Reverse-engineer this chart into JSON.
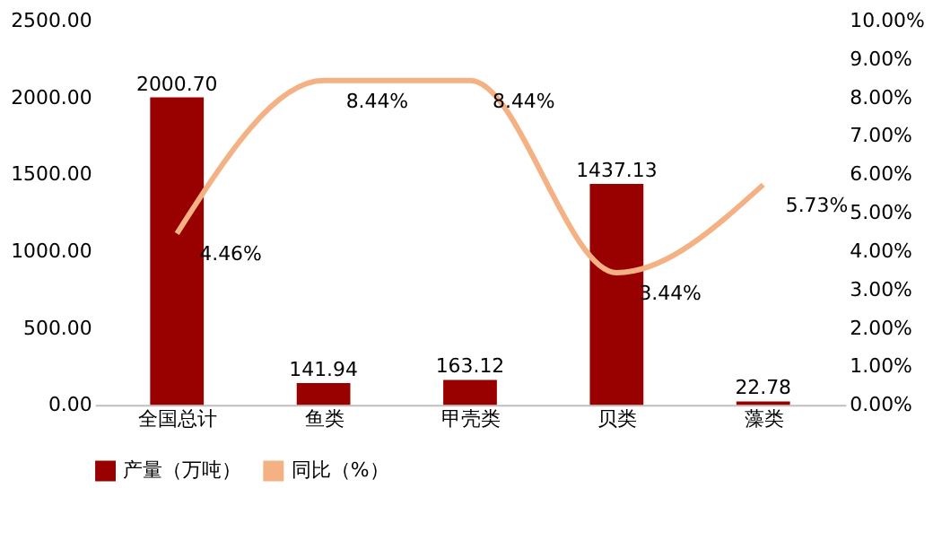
{
  "chart_data": {
    "type": "bar",
    "categories": [
      "全国总计",
      "鱼类",
      "甲壳类",
      "贝类",
      "藻类"
    ],
    "series": [
      {
        "name": "产量（万吨）",
        "color": "#990000",
        "values": [
          2000.7,
          141.94,
          163.12,
          1437.13,
          22.78
        ],
        "value_labels": [
          "2000.70",
          "141.94",
          "163.12",
          "1437.13",
          "22.78"
        ]
      },
      {
        "name": "同比（%）",
        "type": "line",
        "axis": "y2",
        "color": "#f4b183",
        "values": [
          4.46,
          8.44,
          8.44,
          3.44,
          5.73
        ],
        "value_labels": [
          "4.46%",
          "8.44%",
          "8.44%",
          "3.44%",
          "5.73%"
        ]
      }
    ],
    "ylim": [
      0,
      2500
    ],
    "yticks": [
      {
        "value": 0,
        "label": "0.00"
      },
      {
        "value": 500,
        "label": "500.00"
      },
      {
        "value": 1000,
        "label": "1000.00"
      },
      {
        "value": 1500,
        "label": "1500.00"
      },
      {
        "value": 2000,
        "label": "2000.00"
      },
      {
        "value": 2500,
        "label": "2500.00"
      }
    ],
    "y2lim": [
      0,
      10
    ],
    "y2ticks": [
      {
        "value": 0,
        "label": "0.00%"
      },
      {
        "value": 1,
        "label": "1.00%"
      },
      {
        "value": 2,
        "label": "2.00%"
      },
      {
        "value": 3,
        "label": "3.00%"
      },
      {
        "value": 4,
        "label": "4.00%"
      },
      {
        "value": 5,
        "label": "5.00%"
      },
      {
        "value": 6,
        "label": "6.00%"
      },
      {
        "value": 7,
        "label": "7.00%"
      },
      {
        "value": 8,
        "label": "8.00%"
      },
      {
        "value": 9,
        "label": "9.00%"
      },
      {
        "value": 10,
        "label": "10.00%"
      }
    ],
    "grid": false,
    "legend": "bottom",
    "line_style": "solid"
  }
}
